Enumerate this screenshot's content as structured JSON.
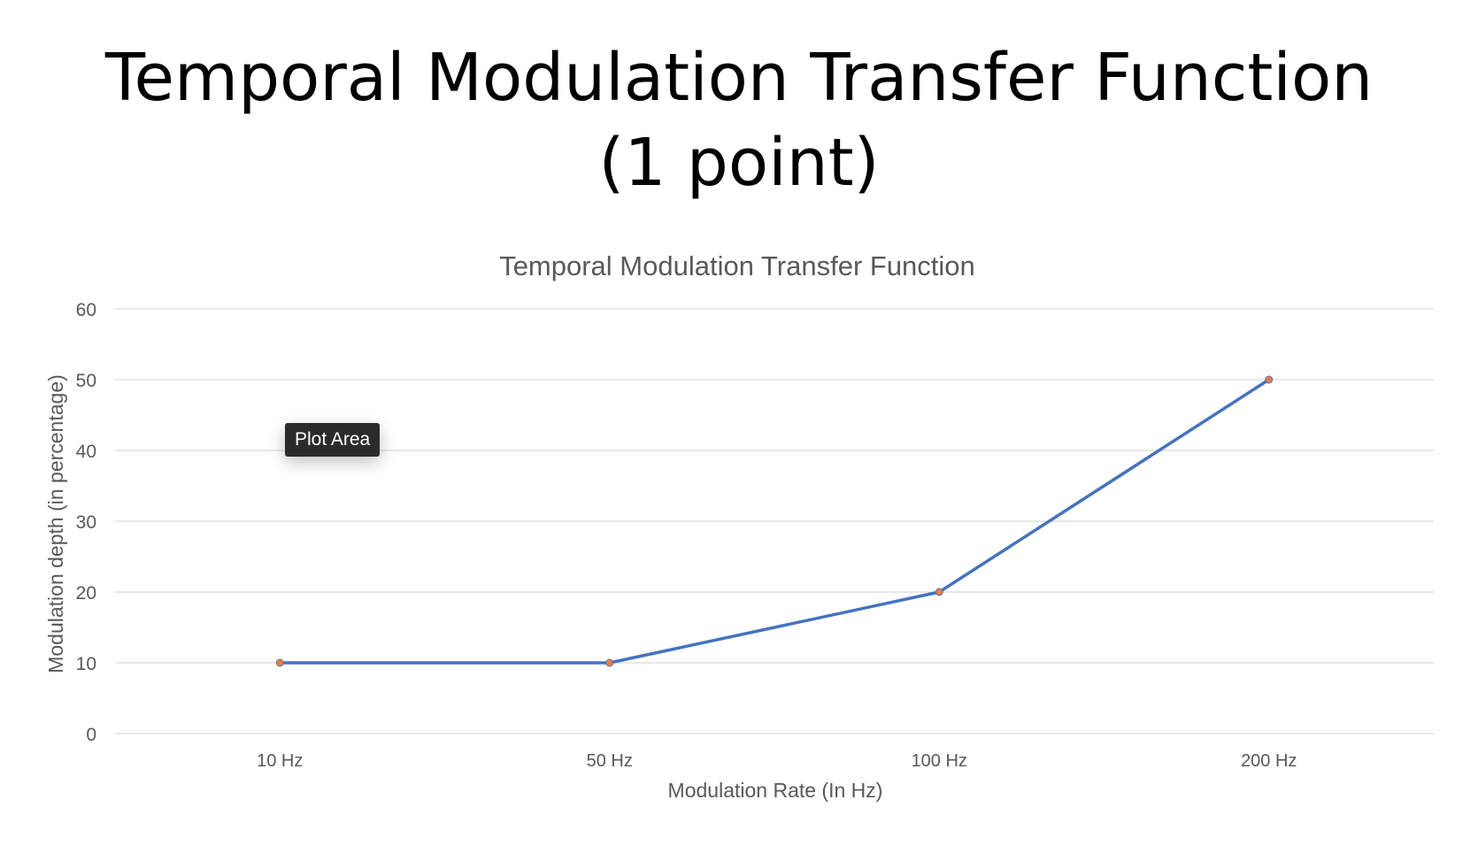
{
  "slide": {
    "title_line1": "Temporal Modulation Transfer Function",
    "title_line2": "(1 point)"
  },
  "tooltip": {
    "label": "Plot Area"
  },
  "colors": {
    "line": "#4472C4",
    "marker": "#ED7D31",
    "grid": "#D9D9D9",
    "axis_text": "#595959"
  },
  "chart_data": {
    "type": "line",
    "title": "Temporal Modulation Transfer Function",
    "xlabel": "Modulation Rate (In Hz)",
    "ylabel": "Modulation depth (in percentage)",
    "categories": [
      "10 Hz",
      "50 Hz",
      "100 Hz",
      "200 Hz"
    ],
    "values": [
      10,
      10,
      20,
      50
    ],
    "ylim": [
      0,
      60
    ],
    "yticks": [
      0,
      10,
      20,
      30,
      40,
      50,
      60
    ],
    "grid": true,
    "legend": false
  }
}
